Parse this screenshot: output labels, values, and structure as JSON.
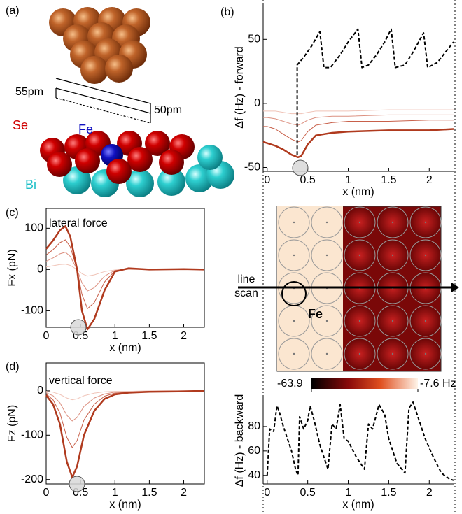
{
  "diagram": {
    "label": "(a)",
    "labels": [
      "55pm",
      "50pm",
      "Se",
      "Fe",
      "Bi"
    ]
  },
  "map": {
    "annotation": "line scan",
    "marker": "Fe",
    "clim": [
      -63.9,
      {
        "value": -7.6,
        "label": "-7.6 Hz"
      }
    ]
  },
  "chart_data": [
    {
      "type": "line",
      "label": "(b)",
      "xlabel": "x (nm)",
      "ylabel": "Δf (Hz) - forward",
      "xlim": [
        -0.05,
        2.3
      ],
      "ylim": [
        -53,
        78
      ],
      "xticks": [
        0,
        0.5,
        1,
        1.5,
        2
      ],
      "yticks": [
        -50,
        0,
        50
      ],
      "x": [
        -0.05,
        0,
        0.1,
        0.2,
        0.3,
        0.38,
        0.42,
        0.5,
        0.6,
        0.8,
        1.0,
        1.5,
        2.0,
        2.3
      ],
      "series": [
        {
          "color": "#f0c4b8",
          "line_width": 1,
          "values": [
            -6,
            -6,
            -6,
            -7,
            -8,
            -8,
            -8,
            -7,
            -6,
            -6,
            -6,
            -5,
            -5,
            -5
          ]
        },
        {
          "color": "#dc9080",
          "line_width": 1,
          "values": [
            -11,
            -11,
            -12,
            -14,
            -16,
            -17,
            -16,
            -13,
            -11,
            -10,
            -10,
            -9,
            -9,
            -9
          ]
        },
        {
          "color": "#c8604a",
          "line_width": 1,
          "values": [
            -18,
            -18,
            -20,
            -24,
            -28,
            -30,
            -29,
            -22,
            -17,
            -15,
            -14,
            -14,
            -13,
            -13
          ]
        },
        {
          "color": "#b03a1e",
          "line_width": 2.5,
          "values": [
            -30,
            -31,
            -33,
            -36,
            -40,
            -42,
            -41,
            -32,
            -25,
            -23,
            -22,
            -21,
            -21,
            -20
          ]
        },
        {
          "color": "#000000",
          "line_width": 2,
          "dashed": true,
          "x": [
            0.37,
            0.37,
            0.45,
            0.55,
            0.65,
            0.7,
            0.78,
            0.9,
            1.0,
            1.12,
            1.17,
            1.25,
            1.35,
            1.45,
            1.53,
            1.58,
            1.7,
            1.8,
            1.93,
            1.98,
            2.1,
            2.2,
            2.3
          ],
          "values": [
            -40,
            30,
            36,
            45,
            56,
            28,
            28,
            38,
            48,
            58,
            28,
            30,
            38,
            48,
            58,
            28,
            30,
            40,
            55,
            28,
            32,
            40,
            48
          ]
        }
      ]
    },
    {
      "type": "line",
      "label": "(c)",
      "annotation": "lateral force",
      "xlabel": "x (nm)",
      "ylabel": "Fx (pN)",
      "xlim": [
        0,
        2.3
      ],
      "ylim": [
        -140,
        148
      ],
      "xticks": [
        0,
        0.5,
        1,
        1.5,
        2
      ],
      "yticks": [
        -100,
        0,
        100
      ],
      "x": [
        0,
        0.1,
        0.2,
        0.28,
        0.35,
        0.4,
        0.45,
        0.52,
        0.6,
        0.7,
        0.85,
        1.0,
        1.2,
        1.5,
        2.0,
        2.3
      ],
      "series": [
        {
          "color": "#f0c4b8",
          "line_width": 1,
          "values": [
            6,
            9,
            12,
            13,
            10,
            5,
            0,
            -10,
            -16,
            -13,
            -5,
            -1,
            0,
            0,
            0,
            0
          ]
        },
        {
          "color": "#dc9080",
          "line_width": 1,
          "values": [
            20,
            28,
            38,
            42,
            32,
            16,
            0,
            -32,
            -52,
            -44,
            -16,
            -2,
            1,
            0,
            0,
            0
          ]
        },
        {
          "color": "#c8604a",
          "line_width": 1,
          "values": [
            35,
            48,
            65,
            72,
            55,
            28,
            0,
            -60,
            -95,
            -80,
            -30,
            -3,
            2,
            0,
            1,
            0
          ]
        },
        {
          "color": "#b03a1e",
          "line_width": 2.5,
          "values": [
            50,
            70,
            95,
            105,
            80,
            40,
            0,
            -100,
            -145,
            -120,
            -50,
            -5,
            3,
            0,
            1,
            0
          ]
        }
      ]
    },
    {
      "type": "line",
      "label": "(d)",
      "annotation": "vertical force",
      "xlabel": "x (nm)",
      "ylabel": "Fz (pN)",
      "xlim": [
        0,
        2.3
      ],
      "ylim": [
        -210,
        63
      ],
      "xticks": [
        0,
        0.5,
        1,
        1.5,
        2
      ],
      "yticks": [
        -200,
        -100,
        0
      ],
      "x": [
        0,
        0.1,
        0.2,
        0.3,
        0.38,
        0.45,
        0.55,
        0.7,
        0.85,
        1.0,
        1.2,
        1.5,
        2.0,
        2.3
      ],
      "series": [
        {
          "color": "#f0c4b8",
          "line_width": 1,
          "values": [
            -1,
            -3,
            -8,
            -16,
            -20,
            -18,
            -11,
            -5,
            -2,
            -1,
            -1,
            0,
            0,
            0
          ]
        },
        {
          "color": "#dc9080",
          "line_width": 1,
          "values": [
            -4,
            -11,
            -27,
            -55,
            -68,
            -60,
            -35,
            -16,
            -7,
            -3,
            -2,
            -1,
            0,
            0
          ]
        },
        {
          "color": "#c8604a",
          "line_width": 1,
          "values": [
            -7,
            -20,
            -50,
            -105,
            -128,
            -112,
            -66,
            -30,
            -12,
            -5,
            -3,
            -1,
            -1,
            0
          ]
        },
        {
          "color": "#b03a1e",
          "line_width": 2.5,
          "values": [
            -10,
            -30,
            -75,
            -160,
            -195,
            -170,
            -100,
            -45,
            -18,
            -8,
            -4,
            -2,
            -1,
            0
          ]
        }
      ]
    },
    {
      "type": "line",
      "xlabel": "x (nm)",
      "ylabel": "Δf (Hz) - backward",
      "xlim": [
        -0.05,
        2.3
      ],
      "ylim": [
        33,
        104
      ],
      "xticks": [
        0,
        0.5,
        1,
        1.5,
        2
      ],
      "yticks": [
        40,
        60,
        80
      ],
      "x": [
        0.0,
        0.03,
        0.08,
        0.12,
        0.15,
        0.2,
        0.3,
        0.35,
        0.38,
        0.4,
        0.45,
        0.5,
        0.53,
        0.58,
        0.65,
        0.75,
        0.8,
        0.85,
        0.9,
        0.95,
        1.0,
        1.1,
        1.2,
        1.25,
        1.3,
        1.38,
        1.45,
        1.5,
        1.6,
        1.7,
        1.75,
        1.8,
        1.85,
        1.95,
        2.05,
        2.15,
        2.25,
        2.3
      ],
      "series": [
        {
          "color": "#000000",
          "line_width": 2,
          "dashed": true,
          "values": [
            40,
            78,
            76,
            97,
            92,
            80,
            60,
            45,
            40,
            88,
            78,
            85,
            97,
            85,
            65,
            45,
            82,
            78,
            98,
            70,
            68,
            55,
            45,
            82,
            78,
            98,
            90,
            70,
            50,
            42,
            95,
            100,
            90,
            70,
            55,
            42,
            37,
            36
          ]
        }
      ]
    }
  ]
}
